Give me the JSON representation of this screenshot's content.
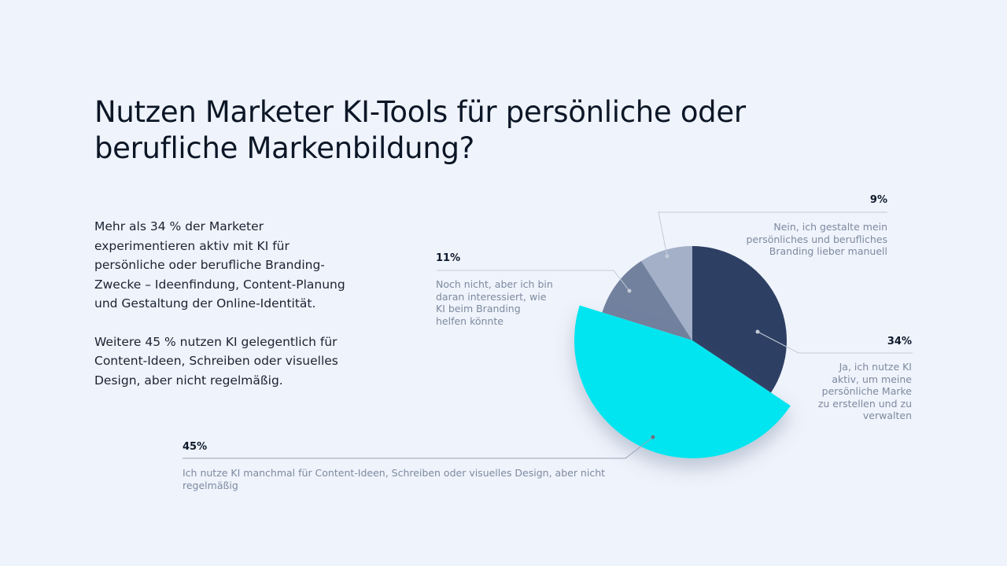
{
  "title": "Nutzen Marketer KI-Tools für persönliche oder berufliche Markenbildung?",
  "paragraphs": [
    "Mehr als 34 % der Marketer experimentieren aktiv mit KI für persönliche oder berufliche Branding-Zwecke – Ideenfindung, Content-Planung und Gestaltung der Online-Identität.",
    "Weitere 45 % nutzen KI gelegentlich für Content-Ideen, Schreiben oder visuelles Design, aber nicht regelmäßig."
  ],
  "chart_data": {
    "type": "pie",
    "start": "12 o'clock, clockwise",
    "slices": [
      {
        "value": 34,
        "label": "34%",
        "text": "Ja, ich nutze KI aktiv, um meine persönliche Marke zu erstellen und zu verwalten",
        "color": "#2d3f63"
      },
      {
        "value": 45,
        "label": "45%",
        "text": "Ich nutze KI manchmal für Content-Ideen, Schreiben oder visuelles Design, aber nicht regelmäßig",
        "color": "#00e5ef",
        "emphasized": true
      },
      {
        "value": 11,
        "label": "11%",
        "text": "Noch nicht, aber ich bin daran interessiert, wie KI beim Branding helfen könnte",
        "color": "#72819e"
      },
      {
        "value": 9,
        "label": "9%",
        "text": "Nein, ich gestalte mein persönliches und berufliches Branding lieber manuell",
        "color": "#a3b0c8"
      }
    ]
  }
}
